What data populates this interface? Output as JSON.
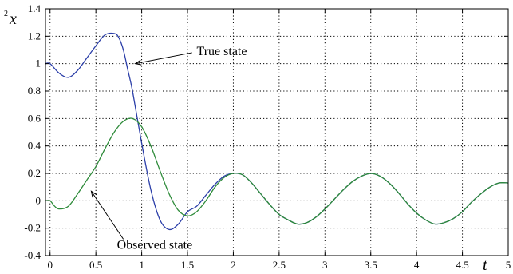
{
  "chart_data": {
    "type": "line",
    "title": "",
    "xlabel": "t",
    "ylabel": "x",
    "ylabel_superscript": "2",
    "xlim": [
      -0.05,
      5
    ],
    "ylim": [
      -0.4,
      1.4
    ],
    "x_ticks": [
      0,
      0.5,
      1,
      1.5,
      2,
      2.5,
      3,
      3.5,
      4,
      4.5,
      5
    ],
    "x_tick_labels": [
      "0",
      "0.5",
      "1",
      "1.5",
      "2",
      "2.5",
      "3",
      "3.5",
      "4",
      "4.5",
      "5"
    ],
    "y_ticks": [
      -0.4,
      -0.2,
      0,
      0.2,
      0.4,
      0.6,
      0.8,
      1,
      1.2,
      1.4
    ],
    "y_tick_labels": [
      "-0.4",
      "-0.2",
      "0",
      "0.2",
      "0.4",
      "0.6",
      "0.8",
      "1",
      "1.2",
      "1.4"
    ],
    "grid": true,
    "series": [
      {
        "color": "#2b3ea8",
        "x": [
          -0.05,
          0.0,
          0.1,
          0.2,
          0.3,
          0.4,
          0.5,
          0.6,
          0.7,
          0.75,
          0.8,
          0.85,
          0.9,
          1.0,
          1.1,
          1.2,
          1.3,
          1.4,
          1.5,
          1.6,
          1.7,
          1.8,
          1.9,
          2.0,
          2.1,
          2.2,
          2.3,
          2.4,
          2.5,
          2.6,
          2.7,
          2.8,
          2.9,
          3.0,
          3.1,
          3.2,
          3.3,
          3.4,
          3.5,
          3.6,
          3.7,
          3.8,
          3.9,
          4.0,
          4.1,
          4.2,
          4.3,
          4.4,
          4.5,
          4.6,
          4.7,
          4.8,
          4.9,
          5.0
        ],
        "y": [
          1.0,
          1.0,
          0.93,
          0.9,
          0.95,
          1.04,
          1.13,
          1.21,
          1.22,
          1.19,
          1.1,
          0.95,
          0.8,
          0.42,
          0.08,
          -0.14,
          -0.21,
          -0.17,
          -0.08,
          -0.04,
          0.04,
          0.12,
          0.18,
          0.2,
          0.19,
          0.13,
          0.05,
          -0.03,
          -0.1,
          -0.14,
          -0.17,
          -0.16,
          -0.12,
          -0.06,
          0.01,
          0.08,
          0.14,
          0.18,
          0.2,
          0.18,
          0.13,
          0.06,
          -0.02,
          -0.09,
          -0.14,
          -0.17,
          -0.16,
          -0.13,
          -0.08,
          -0.01,
          0.05,
          0.1,
          0.13,
          0.13
        ]
      },
      {
        "color": "#2e8b3a",
        "x": [
          -0.05,
          0.0,
          0.05,
          0.1,
          0.2,
          0.3,
          0.4,
          0.5,
          0.6,
          0.7,
          0.8,
          0.9,
          1.0,
          1.1,
          1.2,
          1.3,
          1.4,
          1.5,
          1.6,
          1.7,
          1.8,
          1.9,
          2.0,
          2.1,
          2.2,
          2.3,
          2.4,
          2.5,
          2.6,
          2.7,
          2.8,
          2.9,
          3.0,
          3.1,
          3.2,
          3.3,
          3.4,
          3.5,
          3.6,
          3.7,
          3.8,
          3.9,
          4.0,
          4.1,
          4.2,
          4.3,
          4.4,
          4.5,
          4.6,
          4.7,
          4.8,
          4.9,
          5.0
        ],
        "y": [
          0.0,
          0.0,
          -0.04,
          -0.06,
          -0.04,
          0.05,
          0.15,
          0.25,
          0.38,
          0.5,
          0.58,
          0.6,
          0.54,
          0.4,
          0.22,
          0.05,
          -0.07,
          -0.11,
          -0.08,
          0.0,
          0.1,
          0.17,
          0.2,
          0.19,
          0.13,
          0.05,
          -0.03,
          -0.1,
          -0.14,
          -0.17,
          -0.16,
          -0.12,
          -0.06,
          0.01,
          0.08,
          0.14,
          0.18,
          0.2,
          0.18,
          0.13,
          0.06,
          -0.02,
          -0.09,
          -0.14,
          -0.17,
          -0.16,
          -0.13,
          -0.08,
          -0.01,
          0.05,
          0.1,
          0.13,
          0.13
        ]
      }
    ],
    "annotations": [
      {
        "text": "True state",
        "text_x": 1.6,
        "text_y": 1.09,
        "arrow_from": [
          1.55,
          1.08
        ],
        "arrow_to": [
          0.93,
          1.0
        ]
      },
      {
        "text": "Observed state",
        "text_x": 0.73,
        "text_y": -0.32,
        "arrow_from": [
          0.8,
          -0.28
        ],
        "arrow_to": [
          0.45,
          0.07
        ]
      }
    ]
  }
}
